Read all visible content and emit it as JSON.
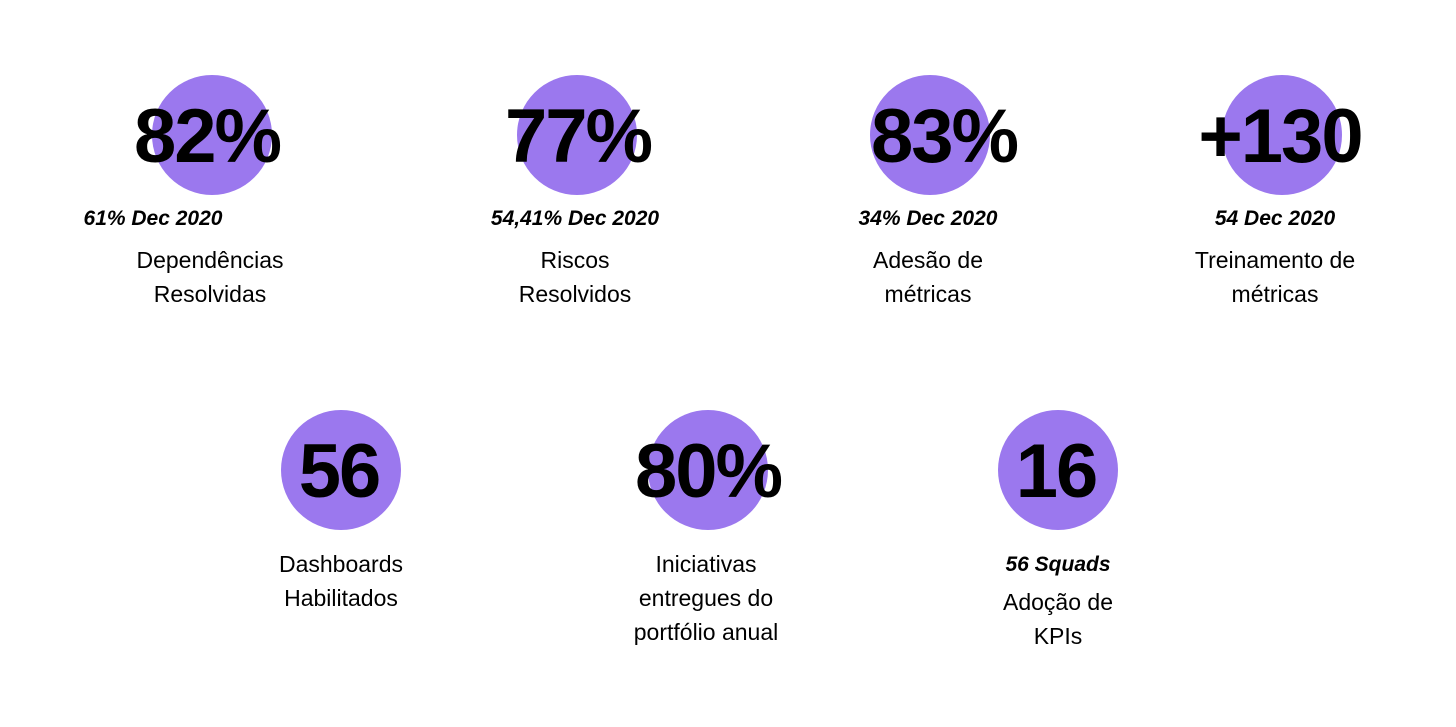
{
  "colors": {
    "circle": "#9b78ee",
    "text": "#000000",
    "background": "#ffffff"
  },
  "stats": [
    {
      "value": "82%",
      "subtitle": "61%  Dec 2020",
      "label_lines": [
        "Dependências",
        "Resolvidas"
      ]
    },
    {
      "value": "77%",
      "subtitle": "54,41% Dec 2020",
      "label_lines": [
        "Riscos",
        "Resolvidos"
      ]
    },
    {
      "value": "83%",
      "subtitle": "34% Dec 2020",
      "label_lines": [
        "Adesão de",
        "métricas"
      ]
    },
    {
      "value": "+130",
      "subtitle": "54 Dec 2020",
      "label_lines": [
        "Treinamento de",
        "métricas"
      ]
    },
    {
      "value": "56",
      "label_lines": [
        "Dashboards",
        "Habilitados"
      ]
    },
    {
      "value": "80%",
      "label_lines": [
        "Iniciativas",
        "entregues do",
        "portfólio anual"
      ]
    },
    {
      "value": "16",
      "subtitle": "56 Squads",
      "label_lines": [
        "Adoção de",
        "KPIs"
      ]
    }
  ]
}
